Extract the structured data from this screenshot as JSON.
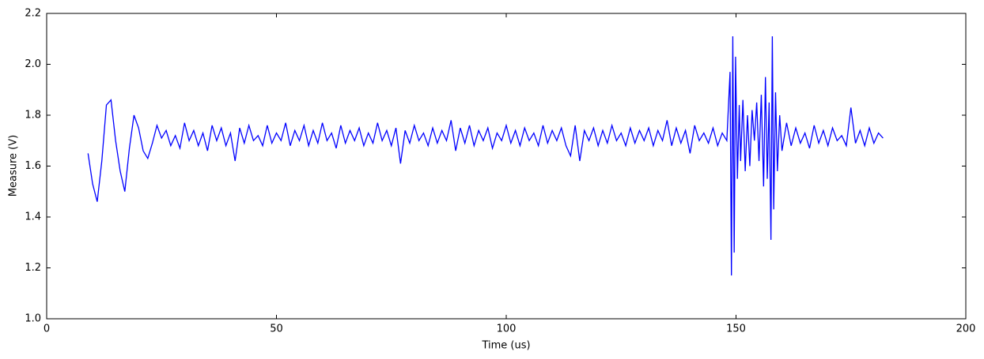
{
  "chart_data": {
    "type": "line",
    "xlabel": "Time (us)",
    "ylabel": "Measure (V)",
    "xlim": [
      0,
      200
    ],
    "xticks": [
      0,
      50,
      100,
      150,
      200
    ],
    "ylim": [
      1.0,
      2.2
    ],
    "yticks": [
      {
        "value": 1.0,
        "label": "1.0"
      },
      1.2,
      1.4,
      1.6,
      1.8,
      {
        "value": 2.0,
        "label": "2.0"
      },
      2.2
    ],
    "color": "#0000ff",
    "x": [
      9,
      10,
      11,
      12,
      13,
      14,
      15,
      16,
      17,
      18,
      19,
      20,
      21,
      22,
      23,
      24,
      25,
      26,
      27,
      28,
      29,
      30,
      31,
      32,
      33,
      34,
      35,
      36,
      37,
      38,
      39,
      40,
      41,
      42,
      43,
      44,
      45,
      46,
      47,
      48,
      49,
      50,
      51,
      52,
      53,
      54,
      55,
      56,
      57,
      58,
      59,
      60,
      61,
      62,
      63,
      64,
      65,
      66,
      67,
      68,
      69,
      70,
      71,
      72,
      73,
      74,
      75,
      76,
      77,
      78,
      79,
      80,
      81,
      82,
      83,
      84,
      85,
      86,
      87,
      88,
      89,
      90,
      91,
      92,
      93,
      94,
      95,
      96,
      97,
      98,
      99,
      100,
      101,
      102,
      103,
      104,
      105,
      106,
      107,
      108,
      109,
      110,
      111,
      112,
      113,
      114,
      115,
      116,
      117,
      118,
      119,
      120,
      121,
      122,
      123,
      124,
      125,
      126,
      127,
      128,
      129,
      130,
      131,
      132,
      133,
      134,
      135,
      136,
      137,
      138,
      139,
      140,
      141,
      142,
      143,
      144,
      145,
      146,
      147,
      148,
      148.7,
      149,
      149.3,
      149.6,
      149.9,
      150.3,
      150.7,
      151,
      151.5,
      152,
      152.5,
      153,
      153.5,
      154,
      154.5,
      155,
      155.5,
      156,
      156.4,
      156.8,
      157.2,
      157.6,
      157.9,
      158.2,
      158.6,
      159,
      159.5,
      160,
      161,
      162,
      163,
      164,
      165,
      166,
      167,
      168,
      169,
      170,
      171,
      172,
      173,
      174,
      175,
      176,
      177,
      178,
      179,
      180,
      181,
      182
    ],
    "values": [
      1.65,
      1.53,
      1.46,
      1.62,
      1.84,
      1.86,
      1.7,
      1.58,
      1.5,
      1.67,
      1.8,
      1.75,
      1.66,
      1.63,
      1.69,
      1.76,
      1.71,
      1.74,
      1.68,
      1.72,
      1.67,
      1.77,
      1.7,
      1.74,
      1.68,
      1.73,
      1.66,
      1.76,
      1.7,
      1.75,
      1.68,
      1.73,
      1.62,
      1.75,
      1.69,
      1.76,
      1.7,
      1.72,
      1.68,
      1.76,
      1.69,
      1.73,
      1.7,
      1.77,
      1.68,
      1.74,
      1.7,
      1.76,
      1.68,
      1.74,
      1.69,
      1.77,
      1.7,
      1.73,
      1.67,
      1.76,
      1.69,
      1.74,
      1.7,
      1.75,
      1.68,
      1.73,
      1.69,
      1.77,
      1.7,
      1.74,
      1.68,
      1.75,
      1.61,
      1.74,
      1.69,
      1.76,
      1.7,
      1.73,
      1.68,
      1.75,
      1.69,
      1.74,
      1.7,
      1.78,
      1.66,
      1.75,
      1.69,
      1.76,
      1.68,
      1.74,
      1.7,
      1.75,
      1.67,
      1.73,
      1.7,
      1.76,
      1.69,
      1.74,
      1.68,
      1.75,
      1.7,
      1.73,
      1.68,
      1.76,
      1.69,
      1.74,
      1.7,
      1.75,
      1.68,
      1.64,
      1.76,
      1.62,
      1.74,
      1.7,
      1.75,
      1.68,
      1.74,
      1.69,
      1.76,
      1.7,
      1.73,
      1.68,
      1.75,
      1.69,
      1.74,
      1.7,
      1.75,
      1.68,
      1.74,
      1.7,
      1.78,
      1.68,
      1.75,
      1.69,
      1.74,
      1.65,
      1.76,
      1.7,
      1.73,
      1.69,
      1.75,
      1.68,
      1.73,
      1.7,
      1.97,
      1.17,
      2.11,
      1.26,
      2.03,
      1.55,
      1.84,
      1.62,
      1.86,
      1.58,
      1.8,
      1.6,
      1.82,
      1.7,
      1.85,
      1.62,
      1.88,
      1.52,
      1.95,
      1.55,
      1.85,
      1.31,
      2.11,
      1.43,
      1.89,
      1.58,
      1.8,
      1.66,
      1.77,
      1.68,
      1.75,
      1.69,
      1.73,
      1.67,
      1.76,
      1.69,
      1.74,
      1.68,
      1.75,
      1.7,
      1.72,
      1.68,
      1.83,
      1.69,
      1.74,
      1.68,
      1.75,
      1.69,
      1.73,
      1.71
    ]
  }
}
